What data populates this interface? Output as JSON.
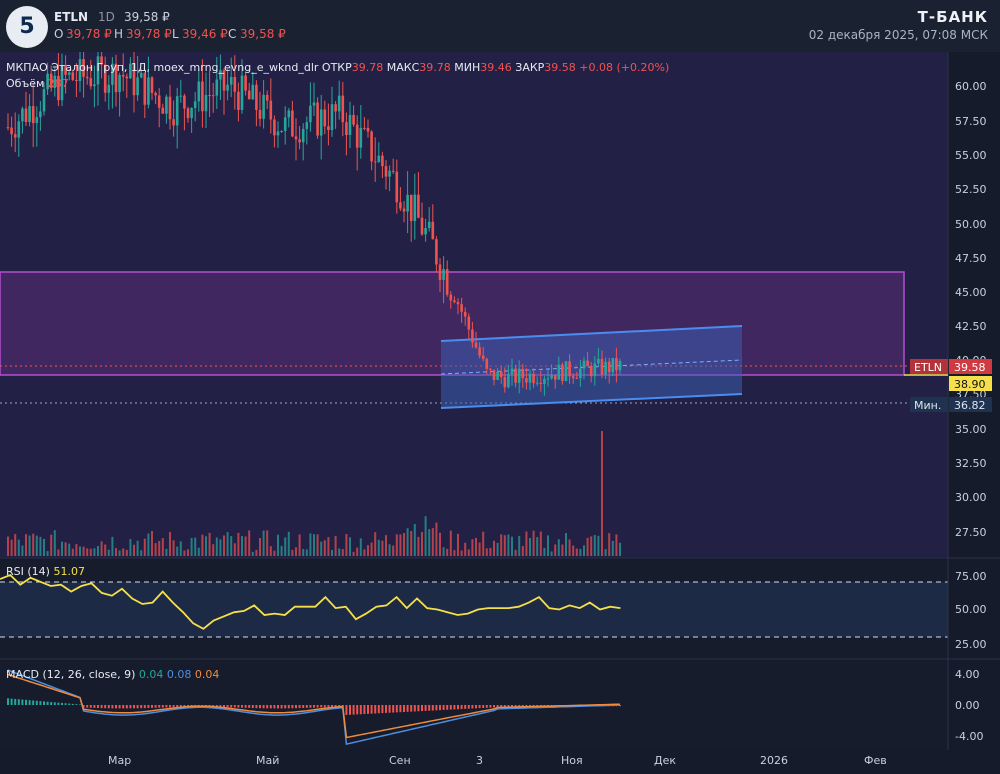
{
  "header": {
    "ticker": "ETLN",
    "timeframe": "1D",
    "price": "39,58 ₽",
    "ohlc": {
      "o_label": "O",
      "o_val": "39,78 ₽",
      "h_label": "H",
      "h_val": "39,78 ₽",
      "l_label": "L",
      "l_val": "39,46 ₽",
      "c_label": "C",
      "c_val": "39,58 ₽"
    },
    "brand": "Т-БАНК",
    "datetime": "02 декабря 2025, 07:08 МСК"
  },
  "legend": {
    "name": "МКПАО Эталон Груп, 1Д, moex_mrng_evng_e_wknd_dlr",
    "open_label": "ОТКР",
    "open_val": "39.78",
    "high_label": "МАКС",
    "high_val": "39.78",
    "low_label": "МИН",
    "low_val": "39.46",
    "close_label": "ЗАКР",
    "close_val": "39.58",
    "change": "+0.08 (+0.20%)",
    "volume_label": "Объём",
    "volume_val": "287"
  },
  "price_axis": {
    "ticks": [
      "60.00",
      "57.50",
      "55.00",
      "52.50",
      "50.00",
      "47.50",
      "45.00",
      "42.50",
      "40.00",
      "37.50",
      "35.00",
      "32.50",
      "30.00",
      "27.50"
    ],
    "last_tag": "ETLN",
    "last_value": "39.58",
    "level_value": "38.90",
    "min_label": "Мин.",
    "min_value": "36.82"
  },
  "rsi": {
    "label": "RSI (14)",
    "value": "51.07",
    "ticks": [
      "75.00",
      "50.00",
      "25.00"
    ]
  },
  "macd": {
    "label": "MACD (12, 26, close, 9)",
    "v1": "0.04",
    "v2": "0.08",
    "v3": "0.04",
    "ticks": [
      "4.00",
      "0.00",
      "-4.00"
    ]
  },
  "time_axis": [
    "Мар",
    "Май",
    "Сен",
    "3",
    "Ноя",
    "Дек",
    "2026",
    "Фев"
  ],
  "colors": {
    "up": "#26a69a",
    "down": "#ef5350",
    "rsi": "#f5e04a",
    "macd": "#4c8fe0",
    "signal": "#f08a3c",
    "zone": "#b44fd0",
    "channel": "#4a8df0"
  },
  "chart_data": [
    {
      "type": "candlestick",
      "title": "МКПАО Эталон Груп, 1Д, moex_mrng_evng_e_wknd_dlr",
      "ylim": [
        25.5,
        62.5
      ],
      "x_labels": [
        "Мар",
        "Май",
        "Сен",
        "3",
        "Ноя",
        "Дек",
        "2026",
        "Фев"
      ],
      "close_path": [
        {
          "x": "2025-01",
          "y": 57
        },
        {
          "x": "2025-02",
          "y": 60.5
        },
        {
          "x": "2025-03",
          "y": 61
        },
        {
          "x": "2025-04",
          "y": 58.5
        },
        {
          "x": "2025-05",
          "y": 60
        },
        {
          "x": "2025-06",
          "y": 57
        },
        {
          "x": "2025-07",
          "y": 58
        },
        {
          "x": "2025-08",
          "y": 53
        },
        {
          "x": "2025-08-20",
          "y": 48.5
        },
        {
          "x": "2025-09-05",
          "y": 44
        },
        {
          "x": "2025-09-20",
          "y": 39
        },
        {
          "x": "2025-10",
          "y": 38.7
        },
        {
          "x": "2025-11",
          "y": 39.2
        },
        {
          "x": "2025-12-02",
          "y": 39.58
        }
      ],
      "last": {
        "open": 39.78,
        "high": 39.78,
        "low": 39.46,
        "close": 39.58,
        "change": "+0.08 (+0.20%)"
      },
      "level": 38.9,
      "min": 36.82,
      "zone": [
        38.9,
        46.5
      ],
      "channel": {
        "upper": [
          41.5,
          42.5
        ],
        "lower": [
          36.8,
          37.6
        ]
      },
      "volume_last": 287
    },
    {
      "type": "line",
      "title": "RSI (14)",
      "last": 51.07,
      "levels": [
        70,
        30
      ],
      "ylim": [
        25,
        80
      ],
      "values": [
        72,
        75,
        68,
        73,
        70,
        67,
        68,
        63,
        67,
        69,
        62,
        60,
        65,
        58,
        54,
        55,
        63,
        55,
        48,
        40,
        36,
        42,
        45,
        48,
        49,
        53,
        46,
        47,
        46,
        52,
        52,
        52,
        59,
        51,
        52,
        43,
        47,
        52,
        53,
        59,
        51,
        58,
        51,
        50,
        48,
        46,
        47,
        50,
        51,
        51,
        51,
        52,
        55,
        59,
        51,
        50,
        53,
        51,
        55,
        50,
        52,
        51
      ]
    },
    {
      "type": "line",
      "title": "MACD (12, 26, close, 9)",
      "last": {
        "macd": 0.04,
        "signal": 0.08,
        "hist": 0.04
      },
      "ylim": [
        -4.5,
        4.5
      ]
    }
  ]
}
